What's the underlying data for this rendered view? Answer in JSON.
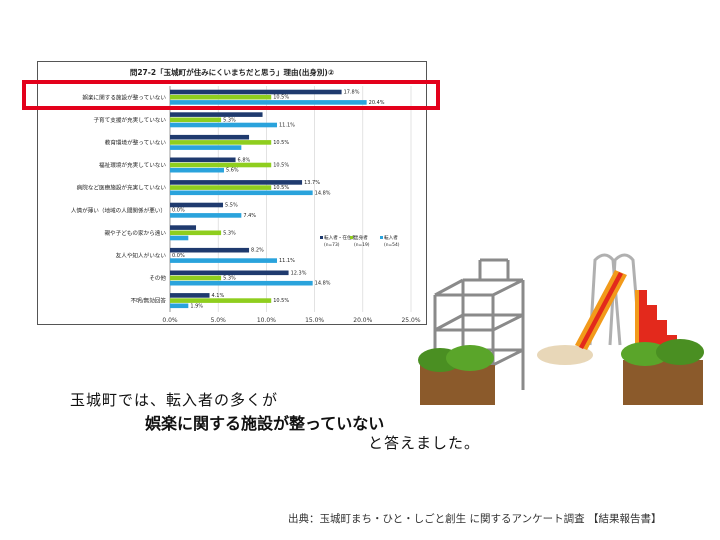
{
  "chart_data": {
    "type": "bar",
    "orientation": "horizontal",
    "title": "問27-2「玉城町が住みにくいまちだと思う」理由(出身別)②",
    "categories": [
      "娯楽に関する施設が整っていない",
      "子育て支援が充実していない",
      "教育環境が整っていない",
      "福祉環境が充実していない",
      "病院など医療施設が充実していない",
      "人情が薄い（地域の人間関係が悪い）",
      "親や子どもの家から遠い",
      "友人や知人がいない",
      "その他",
      "不明/無効回答"
    ],
    "series": [
      {
        "name": "転入者・在住者",
        "n": "(n=73)",
        "color": "#1f3a6e",
        "values": [
          17.8,
          9.6,
          8.2,
          6.8,
          13.7,
          5.5,
          2.7,
          8.2,
          12.3,
          4.1
        ],
        "labels": [
          "17.8%",
          "",
          "",
          "6.8%",
          "13.7%",
          "5.5%",
          "",
          "8.2%",
          "12.3%",
          "4.1%"
        ]
      },
      {
        "name": "出身者",
        "n": "(n=19)",
        "color": "#8fce1e",
        "values": [
          10.5,
          5.3,
          10.5,
          10.5,
          10.5,
          0.0,
          5.3,
          0.0,
          5.3,
          10.5
        ],
        "labels": [
          "10.5%",
          "5.3%",
          "10.5%",
          "10.5%",
          "10.5%",
          "0.0%",
          "5.3%",
          "0.0%",
          "5.3%",
          "10.5%"
        ]
      },
      {
        "name": "転入者",
        "n": "(n=54)",
        "color": "#2aa3dc",
        "values": [
          20.4,
          11.1,
          7.4,
          5.6,
          14.8,
          7.4,
          1.9,
          11.1,
          14.8,
          1.9
        ],
        "labels": [
          "20.4%",
          "11.1%",
          "",
          "5.6%",
          "14.8%",
          "7.4%",
          "",
          "11.1%",
          "14.8%",
          "1.9%"
        ]
      }
    ],
    "x_ticks": [
      "0.0%",
      "5.0%",
      "10.0%",
      "15.0%",
      "20.0%",
      "25.0%"
    ],
    "xlim": [
      0,
      25
    ],
    "grid": true,
    "legend_position": "right"
  },
  "message": {
    "line1": "玉城町では、転入者の多くが",
    "line2": "娯楽に関する施設が整っていない",
    "line3": "と答えました。"
  },
  "source": "出典：玉城町まち・ひと・しごと創生 に関するアンケート調査 【結果報告書】",
  "illustration": {
    "name": "playground-illustration"
  }
}
